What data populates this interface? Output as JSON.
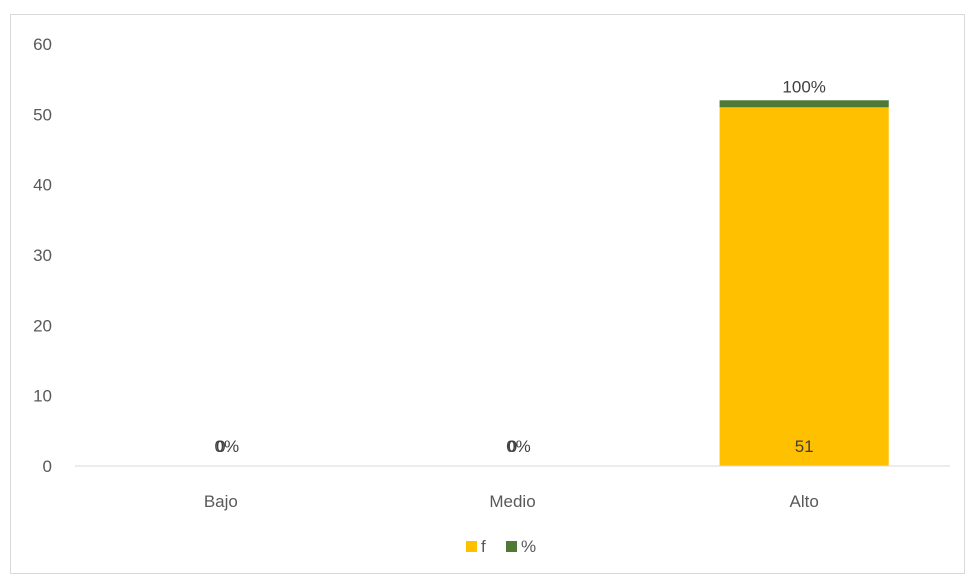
{
  "chart_data": {
    "type": "bar",
    "stacked": true,
    "categories": [
      "Bajo",
      "Medio",
      "Alto"
    ],
    "series": [
      {
        "name": "f",
        "values": [
          0,
          0,
          51
        ],
        "color": "#FFC000",
        "labels": [
          "0",
          "0",
          "51"
        ]
      },
      {
        "name": "%",
        "values": [
          0,
          0,
          1
        ],
        "color": "#4E7A36",
        "labels": [
          "0%",
          "0%",
          "100%"
        ]
      }
    ],
    "ylim": [
      0,
      60
    ],
    "yticks": [
      "0",
      "10",
      "20",
      "30",
      "40",
      "50",
      "60"
    ],
    "grid": false,
    "legend": "bottom",
    "title": "",
    "xlabel": "",
    "ylabel": ""
  }
}
